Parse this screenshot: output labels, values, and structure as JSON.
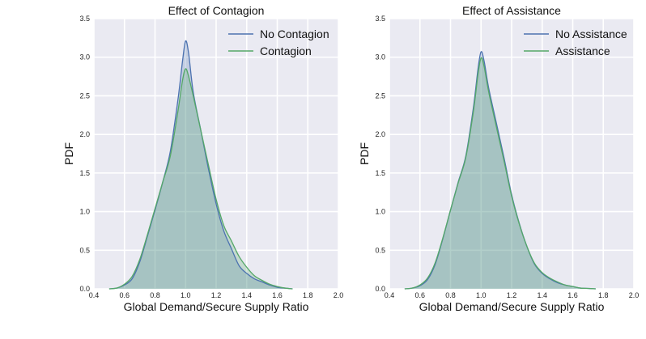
{
  "chart_data": [
    {
      "type": "area",
      "title": "Effect of Contagion",
      "xlabel": "Global Demand/Secure Supply Ratio",
      "ylabel": "PDF",
      "xlim": [
        0.4,
        2.0
      ],
      "ylim": [
        0,
        3.5
      ],
      "xticks": [
        "0.4",
        "0.6",
        "0.8",
        "1.0",
        "1.2",
        "1.4",
        "1.6",
        "1.8",
        "2.0"
      ],
      "yticks": [
        "0.0",
        "0.5",
        "1.0",
        "1.5",
        "2.0",
        "2.5",
        "3.0",
        "3.5"
      ],
      "grid": true,
      "legend": "top-right",
      "series": [
        {
          "name": "No Contagion",
          "color": "#4c72b0",
          "x": [
            0.5,
            0.55,
            0.6,
            0.65,
            0.7,
            0.75,
            0.8,
            0.85,
            0.9,
            0.95,
            0.98,
            1.0,
            1.02,
            1.05,
            1.1,
            1.15,
            1.2,
            1.25,
            1.3,
            1.35,
            1.4,
            1.45,
            1.5,
            1.55,
            1.6,
            1.65,
            1.7
          ],
          "y": [
            0.0,
            0.01,
            0.05,
            0.13,
            0.35,
            0.68,
            1.02,
            1.38,
            1.78,
            2.45,
            2.95,
            3.21,
            3.05,
            2.55,
            2.05,
            1.55,
            1.1,
            0.75,
            0.52,
            0.3,
            0.2,
            0.13,
            0.09,
            0.05,
            0.02,
            0.01,
            0.0
          ]
        },
        {
          "name": "Contagion",
          "color": "#55a868",
          "x": [
            0.5,
            0.55,
            0.6,
            0.65,
            0.7,
            0.75,
            0.8,
            0.85,
            0.9,
            0.95,
            0.98,
            1.0,
            1.02,
            1.05,
            1.1,
            1.15,
            1.2,
            1.25,
            1.3,
            1.35,
            1.4,
            1.45,
            1.5,
            1.55,
            1.6,
            1.65,
            1.7
          ],
          "y": [
            0.0,
            0.01,
            0.06,
            0.16,
            0.38,
            0.7,
            1.04,
            1.38,
            1.72,
            2.3,
            2.7,
            2.85,
            2.75,
            2.5,
            2.05,
            1.6,
            1.16,
            0.82,
            0.62,
            0.42,
            0.28,
            0.17,
            0.11,
            0.06,
            0.03,
            0.01,
            0.0
          ]
        }
      ]
    },
    {
      "type": "area",
      "title": "Effect of Assistance",
      "xlabel": "Global Demand/Secure Supply Ratio",
      "ylabel": "PDF",
      "xlim": [
        0.4,
        2.0
      ],
      "ylim": [
        0,
        3.5
      ],
      "xticks": [
        "0.4",
        "0.6",
        "0.8",
        "1.0",
        "1.2",
        "1.4",
        "1.6",
        "1.8",
        "2.0"
      ],
      "yticks": [
        "0.0",
        "0.5",
        "1.0",
        "1.5",
        "2.0",
        "2.5",
        "3.0",
        "3.5"
      ],
      "grid": true,
      "legend": "top-right",
      "series": [
        {
          "name": "No Assistance",
          "color": "#4c72b0",
          "x": [
            0.5,
            0.55,
            0.6,
            0.65,
            0.7,
            0.75,
            0.8,
            0.85,
            0.9,
            0.95,
            0.98,
            1.0,
            1.02,
            1.05,
            1.1,
            1.15,
            1.2,
            1.25,
            1.3,
            1.35,
            1.4,
            1.45,
            1.5,
            1.55,
            1.6,
            1.65,
            1.7,
            1.75
          ],
          "y": [
            0.0,
            0.01,
            0.04,
            0.12,
            0.32,
            0.65,
            1.02,
            1.38,
            1.72,
            2.35,
            2.85,
            3.07,
            2.95,
            2.6,
            2.15,
            1.7,
            1.22,
            0.85,
            0.55,
            0.32,
            0.2,
            0.13,
            0.08,
            0.05,
            0.03,
            0.01,
            0.005,
            0.0
          ]
        },
        {
          "name": "Assistance",
          "color": "#55a868",
          "x": [
            0.5,
            0.55,
            0.6,
            0.65,
            0.7,
            0.75,
            0.8,
            0.85,
            0.9,
            0.95,
            0.98,
            1.0,
            1.02,
            1.05,
            1.1,
            1.15,
            1.2,
            1.25,
            1.3,
            1.35,
            1.4,
            1.45,
            1.5,
            1.55,
            1.6,
            1.65,
            1.7,
            1.75
          ],
          "y": [
            0.0,
            0.01,
            0.05,
            0.14,
            0.34,
            0.66,
            1.02,
            1.37,
            1.7,
            2.3,
            2.78,
            2.99,
            2.88,
            2.55,
            2.1,
            1.66,
            1.2,
            0.84,
            0.55,
            0.33,
            0.21,
            0.14,
            0.09,
            0.05,
            0.03,
            0.01,
            0.005,
            0.0
          ]
        }
      ]
    }
  ]
}
